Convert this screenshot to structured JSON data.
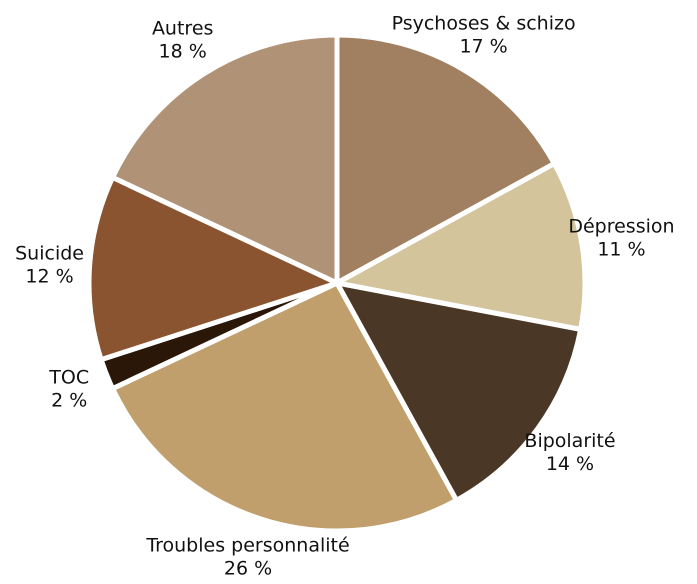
{
  "chart_data": {
    "type": "pie",
    "categories": [
      "Psychoses & schizo",
      "Dépression",
      "Bipolarité",
      "Troubles personnalité",
      "TOC",
      "Suicide",
      "Autres"
    ],
    "values": [
      17,
      11,
      14,
      26,
      2,
      12,
      18
    ],
    "value_labels": [
      "17 %",
      "11 %",
      "14 %",
      "26 %",
      "2 %",
      "12 %",
      "18 %"
    ],
    "colors": [
      "#a08060",
      "#d3c49c",
      "#4b3725",
      "#c09f6c",
      "#2a1708",
      "#8a5430",
      "#b09276"
    ]
  }
}
